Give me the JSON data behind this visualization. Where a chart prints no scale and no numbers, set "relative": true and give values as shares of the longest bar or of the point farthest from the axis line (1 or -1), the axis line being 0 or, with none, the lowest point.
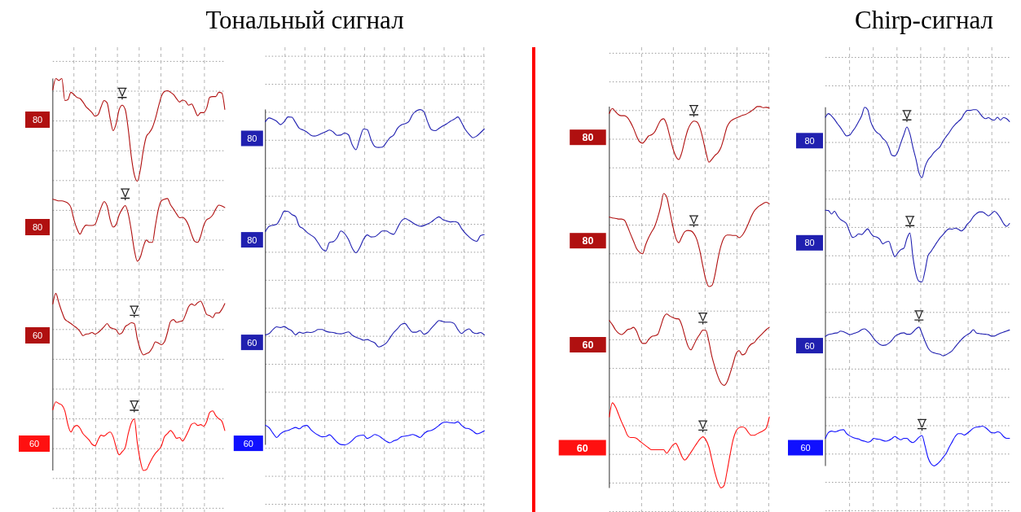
{
  "chart_data": [
    {
      "type": "line",
      "relative": true,
      "grid": true,
      "categories": [
        null,
        null,
        null,
        null,
        null,
        null,
        null,
        null,
        null,
        null,
        null,
        null,
        null,
        null,
        null,
        null,
        null,
        null,
        null,
        null,
        null,
        null,
        null,
        null,
        null,
        null,
        null,
        null,
        null,
        null,
        null,
        null,
        null,
        null,
        null,
        null,
        null,
        null,
        null,
        null,
        null,
        null,
        null,
        null,
        null,
        null,
        null,
        null,
        null,
        null,
        null,
        null,
        null,
        null,
        null,
        null,
        null,
        null
      ],
      "series": [
        {
          "name": "80",
          "color": "#b01010",
          "values": [
            0.971,
            1,
            0.995,
            1,
            0.944,
            0.946,
            0.965,
            0.959,
            0.952,
            0.949,
            0.94,
            0.928,
            0.921,
            0.913,
            0.904,
            0.908,
            0.928,
            0.944,
            0.938,
            0.898,
            0.867,
            0.885,
            0.921,
            0.932,
            0.921,
            0.871,
            0.802,
            0.755,
            0.738,
            0.767,
            0.817,
            0.852,
            0.862,
            0.875,
            0.898,
            0.928,
            0.955,
            0.967,
            0.969,
            0.965,
            0.959,
            0.949,
            0.94,
            0.945,
            0.942,
            0.932,
            0.935,
            0.921,
            0.905,
            0.913,
            0.913,
            0.925,
            0.952,
            0.954,
            0.954,
            0.965,
            0.963,
            0.921
          ]
        },
        {
          "name": "80",
          "color": "#b01010",
          "values": [
            0.692,
            0.69,
            0.688,
            0.688,
            0.686,
            0.682,
            0.671,
            0.64,
            0.617,
            0.603,
            0.617,
            0.626,
            0.625,
            0.625,
            0.628,
            0.648,
            0.671,
            0.686,
            0.675,
            0.64,
            0.621,
            0.628,
            0.652,
            0.667,
            0.676,
            0.655,
            0.613,
            0.563,
            0.534,
            0.544,
            0.571,
            0.588,
            0.582,
            0.582,
            0.625,
            0.667,
            0.688,
            0.692,
            0.694,
            0.678,
            0.667,
            0.655,
            0.645,
            0.646,
            0.64,
            0.625,
            0.602,
            0.585,
            0.582,
            0.598,
            0.625,
            0.64,
            0.644,
            0.652,
            0.667,
            0.677,
            0.675,
            0.671
          ]
        },
        {
          "name": "60",
          "color": "#b01010",
          "values": [
            0.425,
            0.452,
            0.428,
            0.405,
            0.386,
            0.38,
            0.375,
            0.369,
            0.363,
            0.355,
            0.344,
            0.348,
            0.349,
            0.352,
            0.348,
            0.352,
            0.359,
            0.367,
            0.375,
            0.365,
            0.362,
            0.359,
            0.348,
            0.352,
            0.367,
            0.372,
            0.377,
            0.375,
            0.336,
            0.309,
            0.295,
            0.298,
            0.302,
            0.313,
            0.328,
            0.325,
            0.321,
            0.328,
            0.352,
            0.38,
            0.385,
            0.378,
            0.38,
            0.382,
            0.398,
            0.418,
            0.425,
            0.421,
            0.428,
            0.432,
            0.417,
            0.398,
            0.395,
            0.39,
            0.402,
            0.402,
            0.411,
            0.426
          ]
        },
        {
          "name": "60",
          "color": "#ff1010",
          "values": [
            0.155,
            0.175,
            0.171,
            0.167,
            0.152,
            0.117,
            0.098,
            0.111,
            0.115,
            0.108,
            0.094,
            0.086,
            0.078,
            0.067,
            0.063,
            0.078,
            0.09,
            0.088,
            0.094,
            0.098,
            0.086,
            0.059,
            0.04,
            0.048,
            0.059,
            0.094,
            0.121,
            0.131,
            0.071,
            0.025,
            0,
            0.002,
            0.017,
            0.032,
            0.044,
            0.052,
            0.063,
            0.086,
            0.094,
            0.102,
            0.094,
            0.082,
            0.084,
            0.075,
            0.086,
            0.102,
            0.118,
            0.121,
            0.115,
            0.117,
            0.113,
            0.125,
            0.148,
            0.152,
            0.14,
            0.132,
            0.126,
            0.102
          ]
        },
        {
          "marker": "triangle",
          "color": "#222222",
          "values": [
            null,
            null,
            null,
            null,
            null,
            null,
            null,
            null,
            null,
            null,
            null,
            null,
            null,
            null,
            null,
            null,
            null,
            null,
            null,
            null,
            null,
            null,
            null,
            0.962,
            null,
            null,
            null,
            null,
            null,
            null,
            null,
            null,
            null,
            null,
            null,
            null,
            null,
            null,
            null,
            null,
            null,
            null,
            null,
            null,
            null,
            null,
            null,
            null,
            null,
            null,
            null,
            null,
            null,
            null,
            null,
            null,
            null,
            null
          ]
        },
        {
          "marker": "triangle",
          "color": "#222222",
          "values": [
            null,
            null,
            null,
            null,
            null,
            null,
            null,
            null,
            null,
            null,
            null,
            null,
            null,
            null,
            null,
            null,
            null,
            null,
            null,
            null,
            null,
            null,
            null,
            null,
            0.705,
            null,
            null,
            null,
            null,
            null,
            null,
            null,
            null,
            null,
            null,
            null,
            null,
            null,
            null,
            null,
            null,
            null,
            null,
            null,
            null,
            null,
            null,
            null,
            null,
            null,
            null,
            null,
            null,
            null,
            null,
            null,
            null,
            null
          ]
        },
        {
          "marker": "triangle",
          "color": "#222222",
          "values": [
            null,
            null,
            null,
            null,
            null,
            null,
            null,
            null,
            null,
            null,
            null,
            null,
            null,
            null,
            null,
            null,
            null,
            null,
            null,
            null,
            null,
            null,
            null,
            null,
            null,
            null,
            null,
            0.406,
            null,
            null,
            null,
            null,
            null,
            null,
            null,
            null,
            null,
            null,
            null,
            null,
            null,
            null,
            null,
            null,
            null,
            null,
            null,
            null,
            null,
            null,
            null,
            null,
            null,
            null,
            null,
            null,
            null,
            null
          ]
        },
        {
          "marker": "triangle",
          "color": "#222222",
          "values": [
            null,
            null,
            null,
            null,
            null,
            null,
            null,
            null,
            null,
            null,
            null,
            null,
            null,
            null,
            null,
            null,
            null,
            null,
            null,
            null,
            null,
            null,
            null,
            null,
            null,
            null,
            null,
            0.164,
            null,
            null,
            null,
            null,
            null,
            null,
            null,
            null,
            null,
            null,
            null,
            null,
            null,
            null,
            null,
            null,
            null,
            null,
            null,
            null,
            null,
            null,
            null,
            null,
            null,
            null,
            null,
            null,
            null,
            null
          ]
        }
      ]
    },
    {
      "type": "line",
      "title": "Тональный сигнал",
      "relative": true,
      "grid": true,
      "categories": [
        null,
        null,
        null,
        null,
        null,
        null,
        null,
        null,
        null,
        null,
        null,
        null,
        null,
        null,
        null,
        null,
        null,
        null,
        null,
        null,
        null,
        null,
        null,
        null,
        null,
        null,
        null,
        null,
        null,
        null,
        null,
        null,
        null,
        null,
        null,
        null,
        null,
        null,
        null,
        null,
        null,
        null,
        null,
        null,
        null,
        null,
        null,
        null,
        null,
        null,
        null,
        null,
        null,
        null,
        null,
        null,
        null,
        null,
        null
      ],
      "series": [
        {
          "name": "80",
          "color": "#2020b0",
          "values": [
            0.964,
            0.975,
            0.971,
            0.965,
            0.955,
            0.964,
            0.978,
            0.977,
            0.961,
            0.944,
            0.939,
            0.933,
            0.924,
            0.921,
            0.924,
            0.929,
            0.934,
            0.939,
            0.933,
            0.923,
            0.924,
            0.93,
            0.925,
            0.895,
            0.88,
            0.913,
            0.942,
            0.94,
            0.91,
            0.89,
            0.887,
            0.888,
            0.901,
            0.916,
            0.924,
            0.944,
            0.954,
            0.958,
            0.964,
            0.985,
            0.996,
            1,
            0.994,
            0.963,
            0.94,
            0.937,
            0.944,
            0.951,
            0.957,
            0.965,
            0.971,
            0.978,
            0.961,
            0.94,
            0.926,
            0.916,
            0.921,
            0.931,
            0.942
          ]
        },
        {
          "name": "80",
          "color": "#2020b0",
          "values": [
            0.636,
            0.652,
            0.655,
            0.658,
            0.676,
            0.697,
            0.696,
            0.687,
            0.681,
            0.652,
            0.645,
            0.634,
            0.626,
            0.618,
            0.602,
            0.585,
            0.578,
            0.604,
            0.606,
            0.618,
            0.638,
            0.63,
            0.613,
            0.587,
            0.573,
            0.588,
            0.613,
            0.626,
            0.62,
            0.621,
            0.629,
            0.638,
            0.638,
            0.632,
            0.628,
            0.647,
            0.667,
            0.675,
            0.67,
            0.663,
            0.656,
            0.652,
            0.654,
            0.659,
            0.665,
            0.674,
            0.68,
            0.672,
            0.668,
            0.665,
            0.666,
            0.663,
            0.645,
            0.631,
            0.62,
            0.611,
            0.607,
            0.624,
            0.627
          ]
        },
        {
          "name": "60",
          "color": "#2020b0",
          "values": [
            0.328,
            0.332,
            0.344,
            0.352,
            0.35,
            0.353,
            0.346,
            0.34,
            0.328,
            0.336,
            0.333,
            0.336,
            0.335,
            0.338,
            0.344,
            0.344,
            0.339,
            0.336,
            0.335,
            0.332,
            0.331,
            0.334,
            0.337,
            0.327,
            0.321,
            0.317,
            0.312,
            0.314,
            0.309,
            0.304,
            0.292,
            0.296,
            0.303,
            0.319,
            0.335,
            0.346,
            0.359,
            0.362,
            0.348,
            0.336,
            0.336,
            0.341,
            0.33,
            0.335,
            0.348,
            0.36,
            0.371,
            0.368,
            0.366,
            0.366,
            0.362,
            0.344,
            0.332,
            0.341,
            0.346,
            0.335,
            0.332,
            0.335,
            0.328
          ]
        },
        {
          "name": "60",
          "color": "#1010ff",
          "values": [
            0.058,
            0.051,
            0.035,
            0.022,
            0.033,
            0.04,
            0.043,
            0.048,
            0.052,
            0.048,
            0.056,
            0.058,
            0.046,
            0.036,
            0.029,
            0.024,
            0.025,
            0.03,
            0.02,
            0.008,
            0.001,
            0,
            0.004,
            0.013,
            0.024,
            0.028,
            0.029,
            0.019,
            0.024,
            0.031,
            0.027,
            0.019,
            0.011,
            0.006,
            0.012,
            0.016,
            0.024,
            0.026,
            0.028,
            0.031,
            0.027,
            0.022,
            0.033,
            0.041,
            0.043,
            0.049,
            0.058,
            0.066,
            0.068,
            0.066,
            0.065,
            0.069,
            0.058,
            0.05,
            0.048,
            0.041,
            0.033,
            0.036,
            0.042
          ]
        }
      ]
    },
    {
      "type": "line",
      "relative": true,
      "grid": true,
      "categories": [
        null,
        null,
        null,
        null,
        null,
        null,
        null,
        null,
        null,
        null,
        null,
        null,
        null,
        null,
        null,
        null,
        null,
        null,
        null,
        null,
        null,
        null,
        null,
        null,
        null,
        null,
        null,
        null,
        null,
        null,
        null,
        null,
        null,
        null,
        null,
        null,
        null,
        null,
        null,
        null,
        null,
        null,
        null,
        null,
        null,
        null,
        null,
        null,
        null,
        null,
        null,
        null,
        null,
        null
      ],
      "series": [
        {
          "name": "80",
          "color": "#b01010",
          "values": [
            0.982,
            0.995,
            0.987,
            0.979,
            0.976,
            0.976,
            0.971,
            0.959,
            0.943,
            0.923,
            0.908,
            0.904,
            0.912,
            0.923,
            0.926,
            0.933,
            0.949,
            0.964,
            0.968,
            0.953,
            0.923,
            0.892,
            0.87,
            0.861,
            0.879,
            0.911,
            0.939,
            0.955,
            0.962,
            0.96,
            0.945,
            0.915,
            0.881,
            0.854,
            0.862,
            0.872,
            0.879,
            0.893,
            0.919,
            0.947,
            0.96,
            0.966,
            0.97,
            0.973,
            0.977,
            0.979,
            0.983,
            0.988,
            0.994,
            1,
            1,
            0.997,
            0.998,
            0.996
          ]
        },
        {
          "name": "80",
          "color": "#b01010",
          "values": [
            0.71,
            0.708,
            0.707,
            0.705,
            0.705,
            0.702,
            0.686,
            0.666,
            0.647,
            0.628,
            0.618,
            0.614,
            0.637,
            0.656,
            0.671,
            0.685,
            0.708,
            0.737,
            0.772,
            0.763,
            0.727,
            0.688,
            0.656,
            0.643,
            0.658,
            0.672,
            0.675,
            0.674,
            0.667,
            0.651,
            0.621,
            0.581,
            0.545,
            0.528,
            0.531,
            0.559,
            0.601,
            0.635,
            0.656,
            0.663,
            0.663,
            0.662,
            0.662,
            0.656,
            0.662,
            0.675,
            0.692,
            0.711,
            0.726,
            0.735,
            0.741,
            0.746,
            0.749,
            0.745
          ]
        },
        {
          "name": "60",
          "color": "#b01010",
          "values": [
            0.439,
            0.428,
            0.415,
            0.406,
            0.402,
            0.407,
            0.415,
            0.417,
            0.421,
            0.411,
            0.391,
            0.379,
            0.379,
            0.389,
            0.397,
            0.399,
            0.402,
            0.423,
            0.447,
            0.456,
            0.451,
            0.447,
            0.444,
            0.443,
            0.427,
            0.399,
            0.373,
            0.362,
            0.375,
            0.391,
            0.403,
            0.414,
            0.413,
            0.383,
            0.344,
            0.316,
            0.292,
            0.275,
            0.269,
            0.278,
            0.3,
            0.326,
            0.352,
            0.36,
            0.349,
            0.352,
            0.368,
            0.377,
            0.381,
            0.391,
            0.399,
            0.407,
            0.415,
            0.421
          ]
        },
        {
          "name": "60",
          "color": "#ff1010",
          "values": [
            0.186,
            0.223,
            0.213,
            0.194,
            0.174,
            0.157,
            0.138,
            0.132,
            0.132,
            0.13,
            0.123,
            0.117,
            0.111,
            0.105,
            0.1,
            0.1,
            0.1,
            0.1,
            0.1,
            0.091,
            0.101,
            0.112,
            0.117,
            0.103,
            0.083,
            0.073,
            0.081,
            0.093,
            0.105,
            0.117,
            0.128,
            0.134,
            0.126,
            0.107,
            0.073,
            0.04,
            0.014,
            0,
            0.006,
            0.043,
            0.087,
            0.126,
            0.149,
            0.158,
            0.16,
            0.157,
            0.146,
            0.138,
            0.138,
            0.142,
            0.146,
            0.15,
            0.157,
            0.186
          ]
        },
        {
          "marker": "triangle",
          "color": "#222222",
          "values": [
            null,
            null,
            null,
            null,
            null,
            null,
            null,
            null,
            null,
            null,
            null,
            null,
            null,
            null,
            null,
            null,
            null,
            null,
            null,
            null,
            null,
            null,
            null,
            null,
            null,
            null,
            null,
            null,
            0.989,
            null,
            null,
            null,
            null,
            null,
            null,
            null,
            null,
            null,
            null,
            null,
            null,
            null,
            null,
            null,
            null,
            null,
            null,
            null,
            null,
            null,
            null,
            null,
            null,
            null
          ]
        },
        {
          "marker": "triangle",
          "color": "#222222",
          "values": [
            null,
            null,
            null,
            null,
            null,
            null,
            null,
            null,
            null,
            null,
            null,
            null,
            null,
            null,
            null,
            null,
            null,
            null,
            null,
            null,
            null,
            null,
            null,
            null,
            null,
            null,
            null,
            null,
            0.7,
            null,
            null,
            null,
            null,
            null,
            null,
            null,
            null,
            null,
            null,
            null,
            null,
            null,
            null,
            null,
            null,
            null,
            null,
            null,
            null,
            null,
            null,
            null,
            null,
            null
          ]
        },
        {
          "marker": "triangle",
          "color": "#222222",
          "values": [
            null,
            null,
            null,
            null,
            null,
            null,
            null,
            null,
            null,
            null,
            null,
            null,
            null,
            null,
            null,
            null,
            null,
            null,
            null,
            null,
            null,
            null,
            null,
            null,
            null,
            null,
            null,
            null,
            null,
            null,
            null,
            0.445,
            null,
            null,
            null,
            null,
            null,
            null,
            null,
            null,
            null,
            null,
            null,
            null,
            null,
            null,
            null,
            null,
            null,
            null,
            null,
            null,
            null,
            null
          ]
        },
        {
          "marker": "triangle",
          "color": "#222222",
          "values": [
            null,
            null,
            null,
            null,
            null,
            null,
            null,
            null,
            null,
            null,
            null,
            null,
            null,
            null,
            null,
            null,
            null,
            null,
            null,
            null,
            null,
            null,
            null,
            null,
            null,
            null,
            null,
            null,
            null,
            null,
            null,
            0.162,
            null,
            null,
            null,
            null,
            null,
            null,
            null,
            null,
            null,
            null,
            null,
            null,
            null,
            null,
            null,
            null,
            null,
            null,
            null,
            null,
            null,
            null
          ]
        }
      ]
    },
    {
      "type": "line",
      "title": "Chirp-сигнал",
      "relative": true,
      "grid": true,
      "categories": [
        null,
        null,
        null,
        null,
        null,
        null,
        null,
        null,
        null,
        null,
        null,
        null,
        null,
        null,
        null,
        null,
        null,
        null,
        null,
        null,
        null,
        null,
        null,
        null,
        null,
        null,
        null,
        null,
        null,
        null,
        null,
        null,
        null,
        null,
        null,
        null,
        null,
        null,
        null,
        null,
        null,
        null,
        null,
        null,
        null,
        null,
        null,
        null,
        null,
        null,
        null,
        null,
        null,
        null,
        null,
        null,
        null,
        null,
        null,
        null,
        null,
        null
      ],
      "series": [
        {
          "name": "80",
          "color": "#2020b0",
          "values": [
            0.972,
            0.982,
            0.976,
            0.966,
            0.954,
            0.943,
            0.93,
            0.92,
            0.922,
            0.933,
            0.945,
            0.96,
            0.976,
            1,
            0.993,
            0.96,
            0.941,
            0.93,
            0.924,
            0.913,
            0.905,
            0.888,
            0.866,
            0.864,
            0.876,
            0.901,
            0.924,
            0.945,
            0.926,
            0.888,
            0.855,
            0.817,
            0.804,
            0.834,
            0.853,
            0.863,
            0.874,
            0.882,
            0.89,
            0.906,
            0.918,
            0.929,
            0.942,
            0.952,
            0.96,
            0.968,
            0.982,
            0.991,
            0.991,
            0.993,
            0.993,
            0.985,
            0.974,
            0.968,
            0.971,
            0.966,
            0.964,
            0.972,
            0.964,
            0.971,
            0.968,
            0.96
          ]
        },
        {
          "name": "80",
          "color": "#2020b0",
          "values": [
            0.713,
            0.712,
            0.702,
            0.71,
            0.697,
            0.687,
            0.682,
            0.675,
            0.653,
            0.637,
            0.64,
            0.647,
            0.645,
            0.653,
            0.661,
            0.649,
            0.64,
            0.638,
            0.632,
            0.619,
            0.624,
            0.626,
            0.603,
            0.583,
            0.594,
            0.603,
            0.607,
            0.634,
            0.649,
            0.582,
            0.535,
            0.515,
            0.513,
            0.544,
            0.586,
            0.598,
            0.611,
            0.624,
            0.636,
            0.645,
            0.655,
            0.661,
            0.66,
            0.663,
            0.66,
            0.655,
            0.661,
            0.674,
            0.682,
            0.695,
            0.703,
            0.708,
            0.708,
            0.703,
            0.697,
            0.703,
            0.71,
            0.703,
            0.691,
            0.676,
            0.668,
            0.676
          ]
        },
        {
          "name": "60",
          "color": "#2020b0",
          "values": [
            0.361,
            0.366,
            0.368,
            0.37,
            0.371,
            0.376,
            0.374,
            0.37,
            0.366,
            0.368,
            0.371,
            0.374,
            0.38,
            0.382,
            0.376,
            0.367,
            0.355,
            0.346,
            0.339,
            0.336,
            0.337,
            0.342,
            0.35,
            0.361,
            0.366,
            0.37,
            0.371,
            0.367,
            0.367,
            0.373,
            0.382,
            0.387,
            0.369,
            0.348,
            0.329,
            0.319,
            0.315,
            0.313,
            0.311,
            0.307,
            0.31,
            0.315,
            0.321,
            0.332,
            0.342,
            0.352,
            0.36,
            0.366,
            0.371,
            0.38,
            0.371,
            0.369,
            0.368,
            0.367,
            0.366,
            0.362,
            0.362,
            0.366,
            0.37,
            0.373,
            0.376,
            0.379
          ]
        },
        {
          "name": "60",
          "color": "#1010ff",
          "values": [
            0.077,
            0.093,
            0.097,
            0.095,
            0.097,
            0.1,
            0.101,
            0.09,
            0.084,
            0.08,
            0.077,
            0.075,
            0.071,
            0.069,
            0.066,
            0.069,
            0.077,
            0.075,
            0.074,
            0.071,
            0.069,
            0.071,
            0.076,
            0.082,
            0.077,
            0.073,
            0.077,
            0.077,
            0.069,
            0.065,
            0.071,
            0.08,
            0.085,
            0.056,
            0.023,
            0.006,
            0,
            0.005,
            0.013,
            0.024,
            0.035,
            0.052,
            0.067,
            0.082,
            0.09,
            0.09,
            0.086,
            0.091,
            0.098,
            0.105,
            0.108,
            0.109,
            0.111,
            0.107,
            0.1,
            0.093,
            0.092,
            0.095,
            0.092,
            0.082,
            0.077,
            0.077
          ]
        },
        {
          "marker": "triangle",
          "color": "#222222",
          "values": [
            null,
            null,
            null,
            null,
            null,
            null,
            null,
            null,
            null,
            null,
            null,
            null,
            null,
            null,
            null,
            null,
            null,
            null,
            null,
            null,
            null,
            null,
            null,
            null,
            null,
            null,
            null,
            0.976,
            null,
            null,
            null,
            null,
            null,
            null,
            null,
            null,
            null,
            null,
            null,
            null,
            null,
            null,
            null,
            null,
            null,
            null,
            null,
            null,
            null,
            null,
            null,
            null,
            null,
            null,
            null,
            null,
            null,
            null,
            null,
            null,
            null,
            null
          ]
        },
        {
          "marker": "triangle",
          "color": "#222222",
          "values": [
            null,
            null,
            null,
            null,
            null,
            null,
            null,
            null,
            null,
            null,
            null,
            null,
            null,
            null,
            null,
            null,
            null,
            null,
            null,
            null,
            null,
            null,
            null,
            null,
            null,
            null,
            null,
            null,
            0.681,
            null,
            null,
            null,
            null,
            null,
            null,
            null,
            null,
            null,
            null,
            null,
            null,
            null,
            null,
            null,
            null,
            null,
            null,
            null,
            null,
            null,
            null,
            null,
            null,
            null,
            null,
            null,
            null,
            null,
            null,
            null,
            null,
            null
          ]
        },
        {
          "marker": "triangle",
          "color": "#222222",
          "values": [
            null,
            null,
            null,
            null,
            null,
            null,
            null,
            null,
            null,
            null,
            null,
            null,
            null,
            null,
            null,
            null,
            null,
            null,
            null,
            null,
            null,
            null,
            null,
            null,
            null,
            null,
            null,
            null,
            null,
            null,
            null,
            0.418,
            null,
            null,
            null,
            null,
            null,
            null,
            null,
            null,
            null,
            null,
            null,
            null,
            null,
            null,
            null,
            null,
            null,
            null,
            null,
            null,
            null,
            null,
            null,
            null,
            null,
            null,
            null,
            null,
            null,
            null
          ]
        },
        {
          "marker": "triangle",
          "color": "#222222",
          "values": [
            null,
            null,
            null,
            null,
            null,
            null,
            null,
            null,
            null,
            null,
            null,
            null,
            null,
            null,
            null,
            null,
            null,
            null,
            null,
            null,
            null,
            null,
            null,
            null,
            null,
            null,
            null,
            null,
            null,
            null,
            null,
            null,
            0.115,
            null,
            null,
            null,
            null,
            null,
            null,
            null,
            null,
            null,
            null,
            null,
            null,
            null,
            null,
            null,
            null,
            null,
            null,
            null,
            null,
            null,
            null,
            null,
            null,
            null,
            null,
            null,
            null,
            null
          ]
        }
      ]
    }
  ]
}
